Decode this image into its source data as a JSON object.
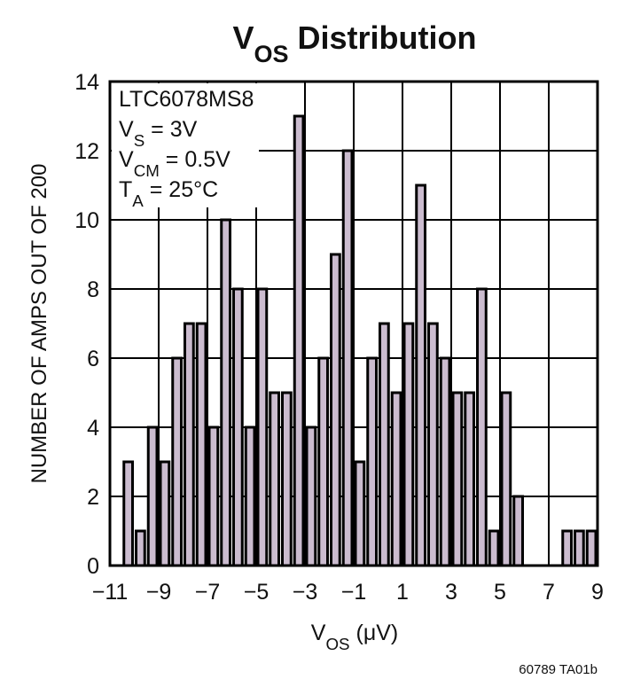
{
  "chart_data": {
    "type": "histogram",
    "title": [
      "V",
      "OS",
      " Distribution"
    ],
    "xlabel": [
      "V",
      "OS",
      " (μV)"
    ],
    "ylabel": "NUMBER OF AMPS OUT OF 200",
    "annotation": [
      [
        "LTC6078MS8"
      ],
      [
        "V",
        "S",
        " = 3V"
      ],
      [
        "V",
        "CM",
        " = 0.5V"
      ],
      [
        "T",
        "A",
        " = 25°C"
      ]
    ],
    "footnote": "60789 TA01b",
    "bins": [
      -10.5,
      -10,
      -9.5,
      -9,
      -8.5,
      -8,
      -7.5,
      -7,
      -6.5,
      -6,
      -5.5,
      -5,
      -4.5,
      -4,
      -3.5,
      -3,
      -2.5,
      -2,
      -1.5,
      -1,
      -0.5,
      0,
      0.5,
      1,
      1.5,
      2,
      2.5,
      3,
      3.5,
      4,
      4.5,
      5,
      5.5,
      6,
      6.5,
      7,
      7.5,
      8,
      8.5,
      9
    ],
    "counts": [
      3,
      1,
      4,
      3,
      6,
      7,
      7,
      4,
      10,
      8,
      4,
      8,
      5,
      5,
      13,
      4,
      6,
      9,
      12,
      3,
      6,
      7,
      5,
      7,
      11,
      7,
      6,
      5,
      5,
      8,
      1,
      5,
      2,
      0,
      0,
      0,
      1,
      1,
      1
    ],
    "color": "#cbbccf",
    "xlim": [
      -11,
      9
    ],
    "xticks": [
      {
        "value": -11,
        "label": "−11"
      },
      {
        "value": -9,
        "label": "−9"
      },
      {
        "value": -7,
        "label": "−7"
      },
      {
        "value": -5,
        "label": "−5"
      },
      {
        "value": -3,
        "label": "−3"
      },
      {
        "value": -1,
        "label": "−1"
      },
      1,
      3,
      5,
      7,
      9
    ],
    "ylim": [
      0,
      14
    ],
    "yticks": [
      0,
      2,
      4,
      6,
      8,
      10,
      12,
      14
    ],
    "grid": true
  }
}
